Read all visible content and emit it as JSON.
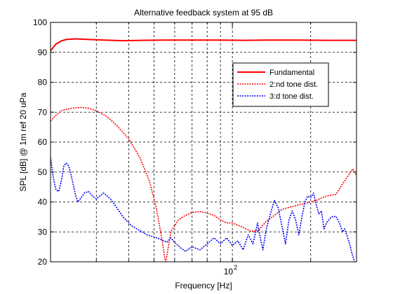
{
  "chart_data": {
    "type": "line",
    "title": "Alternative feedback system at 95 dB",
    "xlabel": "Frequency [Hz]",
    "ylabel": "SPL [dB] @ 1m ref 20 uPa",
    "xscale": "log",
    "xlim": [
      20,
      300
    ],
    "ylim": [
      20,
      100
    ],
    "yticks": [
      20,
      30,
      40,
      50,
      60,
      70,
      80,
      90,
      100
    ],
    "ytick_labels": [
      "20",
      "30",
      "40",
      "50",
      "60",
      "70",
      "80",
      "90",
      "100"
    ],
    "xtick_labels": [
      {
        "label_base": "10",
        "label_exp": "2",
        "value": 100
      }
    ],
    "x_minor_ticks": [
      20,
      30,
      40,
      50,
      60,
      70,
      80,
      90,
      200,
      300
    ],
    "grid": true,
    "legend_position": "top-right",
    "series": [
      {
        "name": "Fundamental",
        "color": "#ff0000",
        "style": "solid",
        "points": [
          [
            20,
            90.5
          ],
          [
            21,
            92.8
          ],
          [
            22,
            93.8
          ],
          [
            23,
            94.3
          ],
          [
            25,
            94.5
          ],
          [
            28,
            94.3
          ],
          [
            32,
            94.1
          ],
          [
            38,
            93.9
          ],
          [
            45,
            94.0
          ],
          [
            55,
            94.1
          ],
          [
            70,
            94.1
          ],
          [
            90,
            94.1
          ],
          [
            110,
            94.0
          ],
          [
            140,
            94.1
          ],
          [
            180,
            94.1
          ],
          [
            230,
            94.0
          ],
          [
            300,
            94.0
          ]
        ]
      },
      {
        "name": "2:nd tone dist.",
        "color": "#ff0000",
        "style": "dotted",
        "points": [
          [
            20,
            67
          ],
          [
            21,
            69
          ],
          [
            22,
            70.5
          ],
          [
            24,
            71.3
          ],
          [
            26,
            71.6
          ],
          [
            28,
            71.3
          ],
          [
            30,
            70.5
          ],
          [
            33,
            68.5
          ],
          [
            36,
            65.5
          ],
          [
            40,
            61
          ],
          [
            44,
            55
          ],
          [
            48,
            47
          ],
          [
            51,
            38
          ],
          [
            53,
            30
          ],
          [
            54,
            26
          ],
          [
            55,
            21
          ],
          [
            55.5,
            20
          ],
          [
            57,
            26
          ],
          [
            58,
            30
          ],
          [
            60,
            32
          ],
          [
            62,
            34
          ],
          [
            66,
            35.5
          ],
          [
            70,
            36.5
          ],
          [
            75,
            36.8
          ],
          [
            80,
            36.3
          ],
          [
            85,
            35.5
          ],
          [
            90,
            34
          ],
          [
            95,
            33
          ],
          [
            100,
            33
          ],
          [
            110,
            31.5
          ],
          [
            118,
            30.2
          ],
          [
            125,
            30.3
          ],
          [
            135,
            33.5
          ],
          [
            145,
            35.5
          ],
          [
            155,
            37.5
          ],
          [
            170,
            38.5
          ],
          [
            190,
            39.5
          ],
          [
            210,
            40.5
          ],
          [
            230,
            42
          ],
          [
            250,
            42.5
          ],
          [
            265,
            46
          ],
          [
            280,
            49
          ],
          [
            290,
            51
          ],
          [
            300,
            48.8
          ]
        ]
      },
      {
        "name": "3:d tone dist.",
        "color": "#0000ff",
        "style": "dotted",
        "points": [
          [
            20,
            55
          ],
          [
            20.5,
            48
          ],
          [
            21,
            44
          ],
          [
            21.5,
            43.5
          ],
          [
            22,
            47
          ],
          [
            22.5,
            52
          ],
          [
            23,
            53
          ],
          [
            23.5,
            52
          ],
          [
            24,
            49
          ],
          [
            25,
            42
          ],
          [
            25.5,
            40
          ],
          [
            26,
            41
          ],
          [
            27,
            43
          ],
          [
            28,
            43.5
          ],
          [
            29,
            42
          ],
          [
            30,
            41
          ],
          [
            32,
            43
          ],
          [
            34,
            41
          ],
          [
            36,
            38
          ],
          [
            38,
            35
          ],
          [
            41,
            32
          ],
          [
            44,
            30.5
          ],
          [
            47,
            29
          ],
          [
            50,
            28.3
          ],
          [
            53,
            27.5
          ],
          [
            56,
            26.5
          ],
          [
            58,
            28
          ],
          [
            60,
            26.5
          ],
          [
            63,
            24.8
          ],
          [
            66,
            23.5
          ],
          [
            70,
            25
          ],
          [
            75,
            24
          ],
          [
            80,
            26
          ],
          [
            85,
            28
          ],
          [
            90,
            26
          ],
          [
            95,
            28
          ],
          [
            100,
            25.5
          ],
          [
            105,
            27
          ],
          [
            110,
            24
          ],
          [
            115,
            29
          ],
          [
            120,
            26
          ],
          [
            125,
            33
          ],
          [
            128,
            28
          ],
          [
            131,
            24
          ],
          [
            135,
            31
          ],
          [
            140,
            36
          ],
          [
            145,
            40.5
          ],
          [
            150,
            38
          ],
          [
            155,
            32
          ],
          [
            160,
            26
          ],
          [
            165,
            34
          ],
          [
            170,
            37
          ],
          [
            175,
            34
          ],
          [
            180,
            29
          ],
          [
            185,
            35
          ],
          [
            190,
            40
          ],
          [
            195,
            42
          ],
          [
            200,
            41.5
          ],
          [
            205,
            43
          ],
          [
            210,
            39
          ],
          [
            215,
            36
          ],
          [
            220,
            37
          ],
          [
            225,
            31
          ],
          [
            230,
            33
          ],
          [
            240,
            35
          ],
          [
            250,
            35.2
          ],
          [
            258,
            33
          ],
          [
            265,
            30
          ],
          [
            270,
            31
          ],
          [
            280,
            27
          ],
          [
            290,
            22
          ],
          [
            295,
            20
          ]
        ]
      }
    ]
  }
}
